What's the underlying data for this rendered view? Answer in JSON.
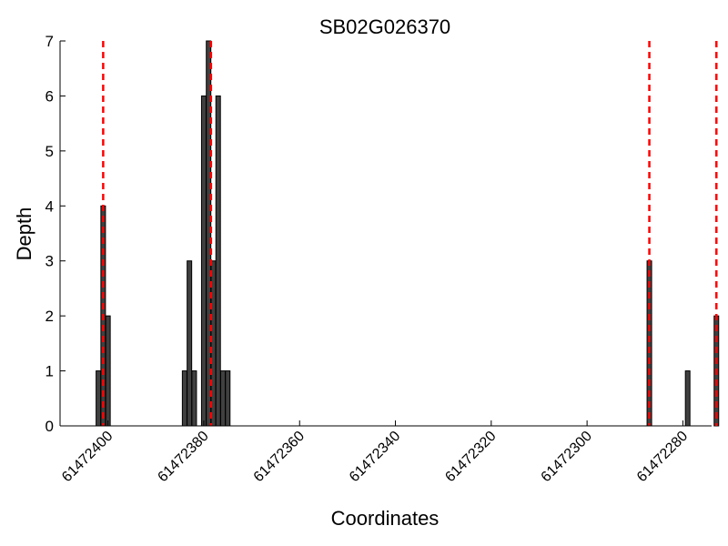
{
  "chart_data": {
    "type": "bar",
    "title": "SB02G026370",
    "xlabel": "Coordinates",
    "ylabel": "Depth",
    "x_axis_inverted": true,
    "xlim": [
      61472410,
      61472274
    ],
    "ylim": [
      0,
      7
    ],
    "xticks": [
      61472400,
      61472380,
      61472360,
      61472340,
      61472320,
      61472300,
      61472280
    ],
    "xtick_labels": [
      "61472400",
      "61472380",
      "61472360",
      "61472340",
      "61472320",
      "61472300",
      "61472280"
    ],
    "yticks": [
      0,
      1,
      2,
      3,
      4,
      5,
      6,
      7
    ],
    "ytick_labels": [
      "0",
      "1",
      "2",
      "3",
      "4",
      "5",
      "6",
      "7"
    ],
    "bars": [
      {
        "x": 61472402,
        "value": 1
      },
      {
        "x": 61472401,
        "value": 4
      },
      {
        "x": 61472400,
        "value": 2
      },
      {
        "x": 61472384,
        "value": 1
      },
      {
        "x": 61472383,
        "value": 3
      },
      {
        "x": 61472382,
        "value": 1
      },
      {
        "x": 61472380,
        "value": 6
      },
      {
        "x": 61472379,
        "value": 7
      },
      {
        "x": 61472378,
        "value": 3
      },
      {
        "x": 61472377,
        "value": 6
      },
      {
        "x": 61472376,
        "value": 1
      },
      {
        "x": 61472375,
        "value": 1
      },
      {
        "x": 61472287,
        "value": 3
      },
      {
        "x": 61472279,
        "value": 1
      },
      {
        "x": 61472273,
        "value": 2
      }
    ],
    "markers": [
      61472401,
      61472378.5,
      61472287,
      61472273
    ],
    "grid": false,
    "colors": {
      "bar_fill": "#404040",
      "bar_edge": "#000000",
      "marker": "#ff0000"
    }
  }
}
